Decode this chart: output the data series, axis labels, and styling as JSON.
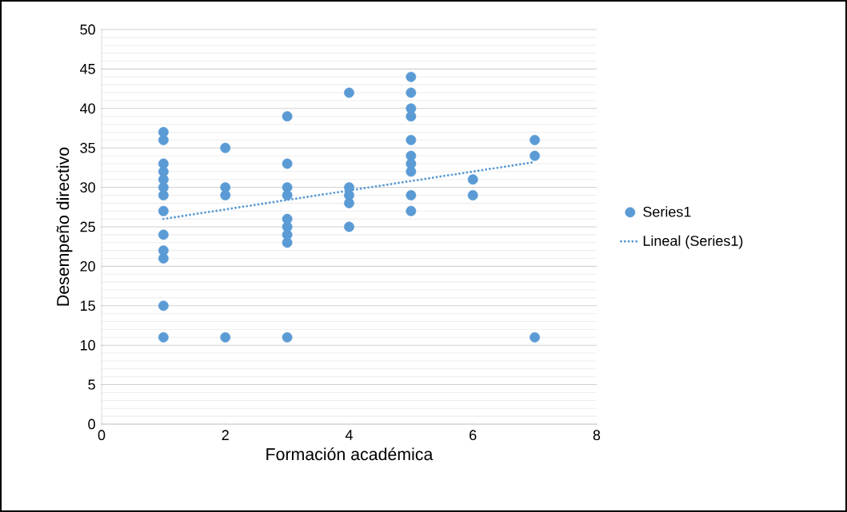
{
  "chart_data": {
    "type": "scatter",
    "xlabel": "Formación académica",
    "ylabel": "Desempeño directivo",
    "xlim": [
      0,
      8
    ],
    "ylim": [
      0,
      50
    ],
    "xticks": [
      0,
      2,
      4,
      6,
      8
    ],
    "yticks": [
      0,
      5,
      10,
      15,
      20,
      25,
      30,
      35,
      40,
      45,
      50
    ],
    "grid": "y",
    "legend": "right",
    "marker": "circle",
    "series": [
      {
        "name": "Series1",
        "color": "#5b9bd5",
        "x": [
          1,
          1,
          1,
          1,
          1,
          1,
          1,
          1,
          1,
          1,
          1,
          1,
          1,
          2,
          2,
          2,
          2,
          3,
          3,
          3,
          3,
          3,
          3,
          3,
          3,
          3,
          4,
          4,
          4,
          4,
          4,
          5,
          5,
          5,
          5,
          5,
          5,
          5,
          5,
          5,
          5,
          6,
          6,
          7,
          7,
          7
        ],
        "values": [
          37,
          36,
          33,
          32,
          31,
          30,
          29,
          27,
          24,
          22,
          21,
          15,
          11,
          35,
          30,
          29,
          11,
          39,
          33,
          30,
          29,
          26,
          25,
          24,
          23,
          11,
          42,
          30,
          29,
          28,
          25,
          44,
          42,
          40,
          39,
          36,
          34,
          33,
          32,
          29,
          27,
          31,
          29,
          36,
          34,
          11
        ]
      },
      {
        "name": "Lineal (Series1)",
        "type": "line",
        "color": "#5b9bd5",
        "x": [
          1,
          7
        ],
        "values": [
          26,
          33.2
        ],
        "line_style": "dotted",
        "marker": "none"
      }
    ]
  }
}
